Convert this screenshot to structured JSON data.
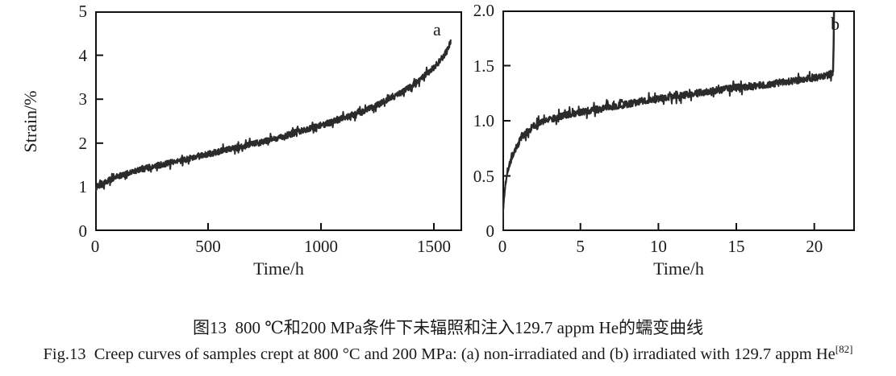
{
  "colors": {
    "background": "#ffffff",
    "axis": "#111111",
    "curve": "#2b2b2b",
    "text": "#1a1a1a"
  },
  "captions": {
    "chinese": "图13 800 ℃和200 MPa条件下未辐照和注入129.7 appm He的蠕变曲线",
    "english": "Fig.13 Creep curves of samples crept at 800 °C and 200 MPa: (a) non-irradiated and (b) irradiated with 129.7 appm He",
    "english_reference": "[82]"
  },
  "chart_data": [
    {
      "type": "line",
      "corner_label": "a",
      "xlabel": "Time/h",
      "ylabel": "Strain/%",
      "xlim": [
        0,
        1625
      ],
      "ylim": [
        0,
        5
      ],
      "grid": false,
      "legend": "none",
      "x_ticks": {
        "values": [
          0,
          500,
          1000,
          1500
        ],
        "labels": [
          "0",
          "500",
          "1000",
          "1500"
        ]
      },
      "y_ticks": {
        "values": [
          0,
          1,
          2,
          3,
          4,
          5
        ],
        "labels": [
          "0",
          "1",
          "2",
          "3",
          "4",
          "5"
        ]
      },
      "series": [
        {
          "name": "non-irradiated creep curve",
          "points": [
            [
              0,
              0.92
            ],
            [
              10,
              1.02
            ],
            [
              30,
              1.08
            ],
            [
              60,
              1.15
            ],
            [
              100,
              1.24
            ],
            [
              150,
              1.32
            ],
            [
              200,
              1.4
            ],
            [
              250,
              1.46
            ],
            [
              300,
              1.52
            ],
            [
              350,
              1.57
            ],
            [
              400,
              1.63
            ],
            [
              450,
              1.69
            ],
            [
              500,
              1.75
            ],
            [
              550,
              1.81
            ],
            [
              600,
              1.86
            ],
            [
              650,
              1.92
            ],
            [
              700,
              1.98
            ],
            [
              750,
              2.04
            ],
            [
              800,
              2.11
            ],
            [
              850,
              2.18
            ],
            [
              900,
              2.26
            ],
            [
              950,
              2.33
            ],
            [
              1000,
              2.41
            ],
            [
              1050,
              2.49
            ],
            [
              1100,
              2.57
            ],
            [
              1150,
              2.66
            ],
            [
              1200,
              2.75
            ],
            [
              1250,
              2.87
            ],
            [
              1300,
              3.0
            ],
            [
              1350,
              3.13
            ],
            [
              1400,
              3.3
            ],
            [
              1450,
              3.5
            ],
            [
              1500,
              3.72
            ],
            [
              1525,
              3.86
            ],
            [
              1545,
              4.0
            ],
            [
              1560,
              4.13
            ],
            [
              1570,
              4.25
            ],
            [
              1575,
              4.33
            ]
          ]
        }
      ],
      "noise_amplitude": 0.07,
      "samples": 720,
      "seed": 42
    },
    {
      "type": "line",
      "corner_label": "b",
      "xlabel": "Time/h",
      "ylabel": "",
      "xlim": [
        0,
        22.6
      ],
      "ylim": [
        0,
        2.0
      ],
      "grid": false,
      "legend": "none",
      "x_ticks": {
        "values": [
          0,
          5,
          10,
          15,
          20
        ],
        "labels": [
          "0",
          "5",
          "10",
          "15",
          "20"
        ]
      },
      "y_ticks": {
        "values": [
          0,
          0.5,
          1.0,
          1.5,
          2.0
        ],
        "labels": [
          "0",
          "0.5",
          "1.0",
          "1.5",
          "2.0"
        ]
      },
      "series": [
        {
          "name": "irradiated (129.7 appm He) creep curve",
          "points": [
            [
              0,
              0.03
            ],
            [
              0.05,
              0.18
            ],
            [
              0.1,
              0.3
            ],
            [
              0.2,
              0.44
            ],
            [
              0.3,
              0.53
            ],
            [
              0.5,
              0.63
            ],
            [
              0.75,
              0.72
            ],
            [
              1,
              0.79
            ],
            [
              1.25,
              0.85
            ],
            [
              1.5,
              0.89
            ],
            [
              1.75,
              0.92
            ],
            [
              2,
              0.95
            ],
            [
              2.5,
              0.99
            ],
            [
              3,
              1.01
            ],
            [
              3.5,
              1.03
            ],
            [
              4,
              1.05
            ],
            [
              5,
              1.08
            ],
            [
              6,
              1.1
            ],
            [
              7,
              1.13
            ],
            [
              8,
              1.15
            ],
            [
              9,
              1.18
            ],
            [
              10,
              1.2
            ],
            [
              11,
              1.22
            ],
            [
              12,
              1.24
            ],
            [
              13,
              1.26
            ],
            [
              14,
              1.28
            ],
            [
              15,
              1.3
            ],
            [
              16,
              1.31
            ],
            [
              17,
              1.33
            ],
            [
              18,
              1.35
            ],
            [
              19,
              1.37
            ],
            [
              20,
              1.39
            ],
            [
              20.5,
              1.4
            ],
            [
              21,
              1.42
            ],
            [
              21.2,
              1.44
            ]
          ]
        }
      ],
      "rupture_segment": [
        [
          21.2,
          1.44
        ],
        [
          21.24,
          1.7
        ],
        [
          21.26,
          2.0
        ]
      ],
      "noise_amplitude": 0.032,
      "samples": 650,
      "seed": 7
    }
  ]
}
